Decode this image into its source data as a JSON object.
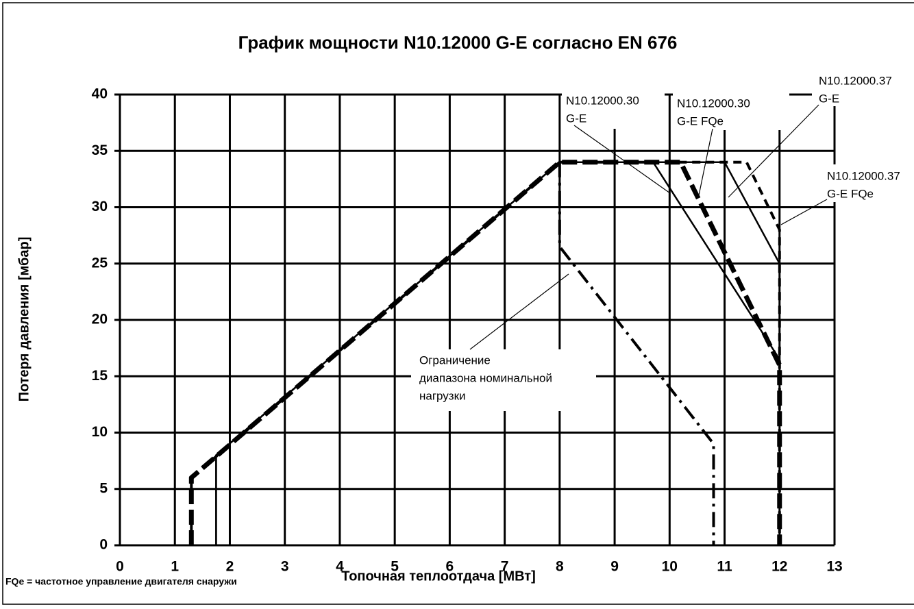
{
  "chart_data": {
    "type": "line",
    "title": "График мощности N10.12000 G-E согласно EN 676",
    "x_label": "Топочная теплоотдача [МВт]",
    "y_label": "Потеря давления [мбар]",
    "footnote": "FQe = частотное управление двигателя снаружи",
    "xlim": [
      0,
      13
    ],
    "ylim": [
      0,
      40
    ],
    "xticks": [
      0,
      1,
      2,
      3,
      4,
      5,
      6,
      7,
      8,
      9,
      10,
      11,
      12,
      13
    ],
    "yticks": [
      0,
      5,
      10,
      15,
      20,
      25,
      30,
      35,
      40
    ],
    "grid": true,
    "series": [
      {
        "name": [
          "N10.12000.30",
          "G-E"
        ],
        "color": "#000000",
        "line_style": "solid",
        "x": [
          1.75,
          1.75,
          8,
          9.7,
          12,
          12
        ],
        "values": [
          0,
          8,
          34,
          34,
          16.5,
          0
        ]
      },
      {
        "name": [
          "N10.12000.30",
          "G-E FQe"
        ],
        "color": "#000000",
        "line_style": "thick-dashed",
        "x": [
          1.3,
          1.3,
          8,
          10.2,
          12,
          12
        ],
        "values": [
          0,
          6,
          34,
          34,
          16,
          0
        ]
      },
      {
        "name": [
          "N10.12000.37",
          "G-E"
        ],
        "color": "#000000",
        "line_style": "solid",
        "x": [
          1.75,
          1.75,
          8,
          11,
          12,
          12
        ],
        "values": [
          0,
          8,
          34,
          34,
          25,
          0
        ]
      },
      {
        "name": [
          "N10.12000.37",
          "G-E FQe"
        ],
        "color": "#000000",
        "line_style": "dashed",
        "x": [
          1.3,
          1.3,
          8,
          11.4,
          12,
          12
        ],
        "values": [
          0,
          6,
          34,
          34,
          28,
          0
        ]
      },
      {
        "name": [
          "Ограничение",
          "диапазона номинальной",
          "нагрузки"
        ],
        "color": "#000000",
        "line_style": "dash-dot",
        "x": [
          8,
          8,
          10.8,
          10.8
        ],
        "values": [
          34,
          26.5,
          9,
          0
        ]
      }
    ]
  }
}
